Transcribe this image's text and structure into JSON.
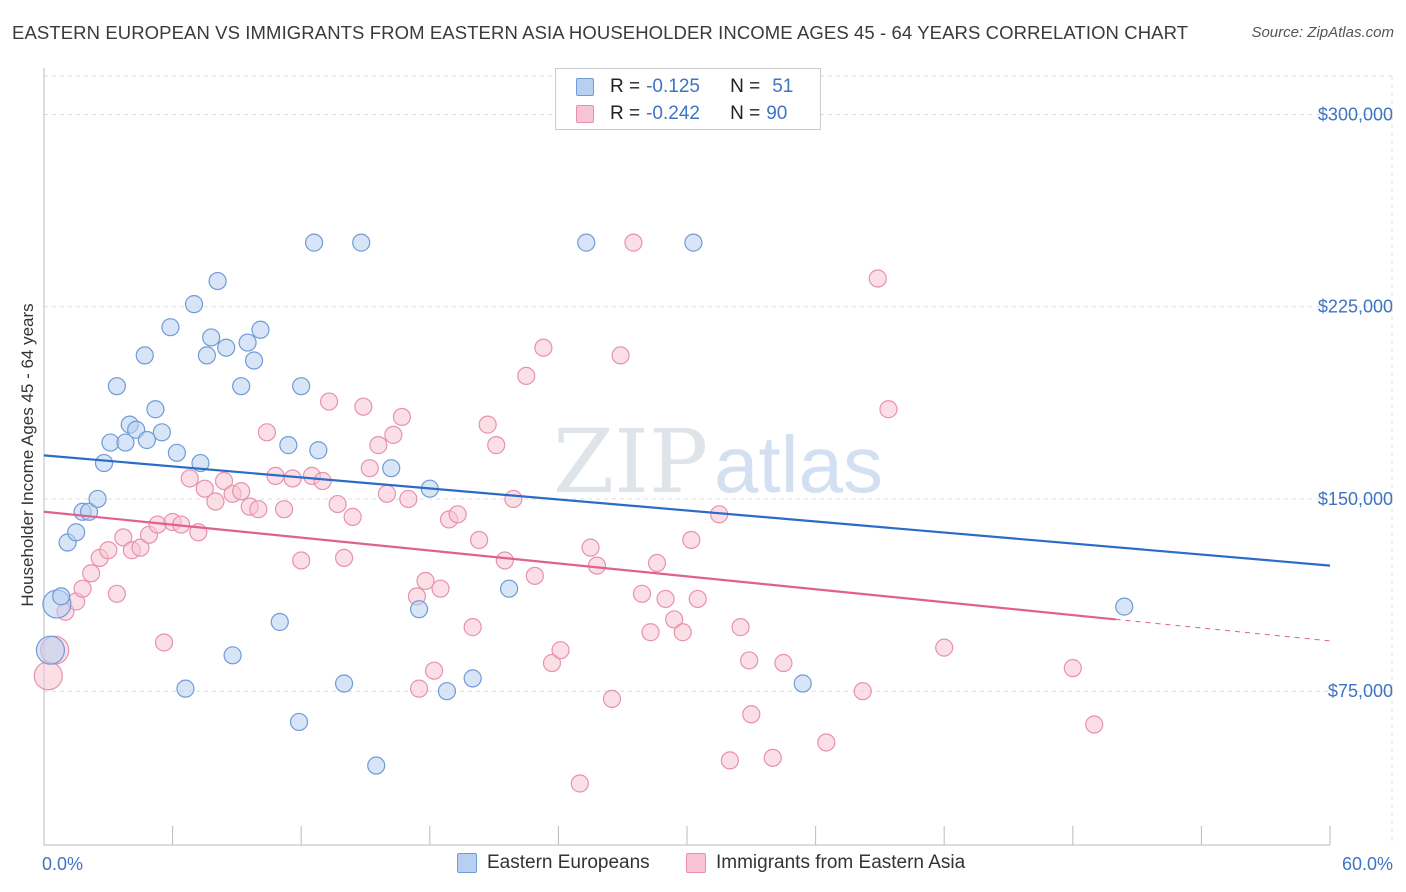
{
  "title": "EASTERN EUROPEAN VS IMMIGRANTS FROM EASTERN ASIA HOUSEHOLDER INCOME AGES 45 - 64 YEARS CORRELATION CHART",
  "source": "Source: ZipAtlas.com",
  "watermark": {
    "zip": "ZIP",
    "atlas": "atlas"
  },
  "colors": {
    "blue_fill": "#b8d0f0",
    "blue_stroke": "#6f9bd8",
    "blue_line": "#2b6cc8",
    "pink_fill": "#f8c4d4",
    "pink_stroke": "#e891ad",
    "pink_line": "#e0608e",
    "axis_text": "#3d74c4",
    "grid": "#dddddd"
  },
  "legend": {
    "rows": [
      {
        "r_label": "R = ",
        "r_value": "-0.125",
        "n_label": "N = ",
        "n_value": "51"
      },
      {
        "r_label": "R = ",
        "r_value": "-0.242",
        "n_label": "N = ",
        "n_value": "90"
      }
    ]
  },
  "bottom_legend": [
    "Eastern Europeans",
    "Immigrants from Eastern Asia"
  ],
  "chart_data": {
    "type": "scatter",
    "xlabel": "",
    "ylabel": "Householder Income Ages 45 - 64 years",
    "xlim": [
      0,
      60
    ],
    "ylim": [
      15000,
      315000
    ],
    "x_tick_labels": [
      "0.0%",
      "60.0%"
    ],
    "y_ticks": [
      75000,
      150000,
      225000,
      300000
    ],
    "y_tick_labels": [
      "$75,000",
      "$150,000",
      "$225,000",
      "$300,000"
    ],
    "grid": true,
    "series": [
      {
        "name": "Eastern Europeans",
        "trend": {
          "x": [
            0,
            60
          ],
          "y": [
            167000,
            124000
          ]
        },
        "points": [
          [
            0.3,
            91000
          ],
          [
            0.6,
            109000
          ],
          [
            0.8,
            112000
          ],
          [
            1.1,
            133000
          ],
          [
            1.5,
            137000
          ],
          [
            1.8,
            145000
          ],
          [
            2.1,
            145000
          ],
          [
            2.5,
            150000
          ],
          [
            2.8,
            164000
          ],
          [
            3.1,
            172000
          ],
          [
            3.8,
            172000
          ],
          [
            3.4,
            194000
          ],
          [
            4.0,
            179000
          ],
          [
            4.3,
            177000
          ],
          [
            4.8,
            173000
          ],
          [
            5.2,
            185000
          ],
          [
            5.5,
            176000
          ],
          [
            4.7,
            206000
          ],
          [
            5.9,
            217000
          ],
          [
            6.2,
            168000
          ],
          [
            6.6,
            76000
          ],
          [
            7.0,
            226000
          ],
          [
            7.3,
            164000
          ],
          [
            7.6,
            206000
          ],
          [
            7.8,
            213000
          ],
          [
            8.1,
            235000
          ],
          [
            8.5,
            209000
          ],
          [
            8.8,
            89000
          ],
          [
            9.2,
            194000
          ],
          [
            9.5,
            211000
          ],
          [
            9.8,
            204000
          ],
          [
            10.1,
            216000
          ],
          [
            11.0,
            102000
          ],
          [
            11.4,
            171000
          ],
          [
            11.9,
            63000
          ],
          [
            12.0,
            194000
          ],
          [
            12.6,
            250000
          ],
          [
            12.8,
            169000
          ],
          [
            14.0,
            78000
          ],
          [
            14.8,
            250000
          ],
          [
            15.5,
            46000
          ],
          [
            16.2,
            162000
          ],
          [
            17.5,
            107000
          ],
          [
            18.0,
            154000
          ],
          [
            18.8,
            75000
          ],
          [
            20.0,
            80000
          ],
          [
            21.7,
            115000
          ],
          [
            25.3,
            250000
          ],
          [
            30.3,
            250000
          ],
          [
            35.4,
            78000
          ],
          [
            50.4,
            108000
          ]
        ]
      },
      {
        "name": "Immigrants from Eastern Asia",
        "trend": {
          "x": [
            0,
            50
          ],
          "y": [
            145000,
            103000
          ]
        },
        "trend_ext": {
          "x": [
            50,
            60
          ],
          "y": [
            103000,
            94600
          ]
        },
        "points": [
          [
            0.2,
            81000
          ],
          [
            0.5,
            91000
          ],
          [
            1.0,
            106000
          ],
          [
            1.5,
            110000
          ],
          [
            1.8,
            115000
          ],
          [
            2.2,
            121000
          ],
          [
            2.6,
            127000
          ],
          [
            3.0,
            130000
          ],
          [
            3.4,
            113000
          ],
          [
            3.7,
            135000
          ],
          [
            4.1,
            130000
          ],
          [
            4.5,
            131000
          ],
          [
            4.9,
            136000
          ],
          [
            5.3,
            140000
          ],
          [
            5.6,
            94000
          ],
          [
            6.0,
            141000
          ],
          [
            6.4,
            140000
          ],
          [
            6.8,
            158000
          ],
          [
            7.2,
            137000
          ],
          [
            7.5,
            154000
          ],
          [
            8.0,
            149000
          ],
          [
            8.4,
            157000
          ],
          [
            8.8,
            152000
          ],
          [
            9.2,
            153000
          ],
          [
            9.6,
            147000
          ],
          [
            10.0,
            146000
          ],
          [
            10.4,
            176000
          ],
          [
            10.8,
            159000
          ],
          [
            11.2,
            146000
          ],
          [
            11.6,
            158000
          ],
          [
            12.0,
            126000
          ],
          [
            12.5,
            159000
          ],
          [
            13.0,
            157000
          ],
          [
            13.3,
            188000
          ],
          [
            13.7,
            148000
          ],
          [
            14.0,
            127000
          ],
          [
            14.4,
            143000
          ],
          [
            14.9,
            186000
          ],
          [
            15.2,
            162000
          ],
          [
            15.6,
            171000
          ],
          [
            16.0,
            152000
          ],
          [
            16.3,
            175000
          ],
          [
            16.7,
            182000
          ],
          [
            17.0,
            150000
          ],
          [
            17.4,
            112000
          ],
          [
            17.8,
            118000
          ],
          [
            18.2,
            83000
          ],
          [
            18.5,
            115000
          ],
          [
            18.9,
            142000
          ],
          [
            19.3,
            144000
          ],
          [
            20.3,
            134000
          ],
          [
            20.7,
            179000
          ],
          [
            21.1,
            171000
          ],
          [
            21.5,
            126000
          ],
          [
            21.9,
            150000
          ],
          [
            22.5,
            198000
          ],
          [
            22.9,
            120000
          ],
          [
            23.3,
            209000
          ],
          [
            23.7,
            86000
          ],
          [
            24.1,
            91000
          ],
          [
            25.5,
            131000
          ],
          [
            25.8,
            124000
          ],
          [
            26.5,
            72000
          ],
          [
            26.9,
            206000
          ],
          [
            27.5,
            250000
          ],
          [
            27.9,
            113000
          ],
          [
            28.3,
            98000
          ],
          [
            28.6,
            125000
          ],
          [
            29.0,
            111000
          ],
          [
            29.4,
            103000
          ],
          [
            29.8,
            98000
          ],
          [
            30.2,
            134000
          ],
          [
            30.5,
            111000
          ],
          [
            31.5,
            144000
          ],
          [
            32.0,
            48000
          ],
          [
            32.5,
            100000
          ],
          [
            32.9,
            87000
          ],
          [
            20.0,
            100000
          ],
          [
            25.0,
            39000
          ],
          [
            34.0,
            49000
          ],
          [
            36.5,
            55000
          ],
          [
            34.5,
            86000
          ],
          [
            38.2,
            75000
          ],
          [
            38.9,
            236000
          ],
          [
            39.4,
            185000
          ],
          [
            42.0,
            92000
          ],
          [
            48.0,
            84000
          ],
          [
            49.0,
            62000
          ],
          [
            33.0,
            66000
          ],
          [
            17.5,
            76000
          ]
        ]
      }
    ]
  }
}
